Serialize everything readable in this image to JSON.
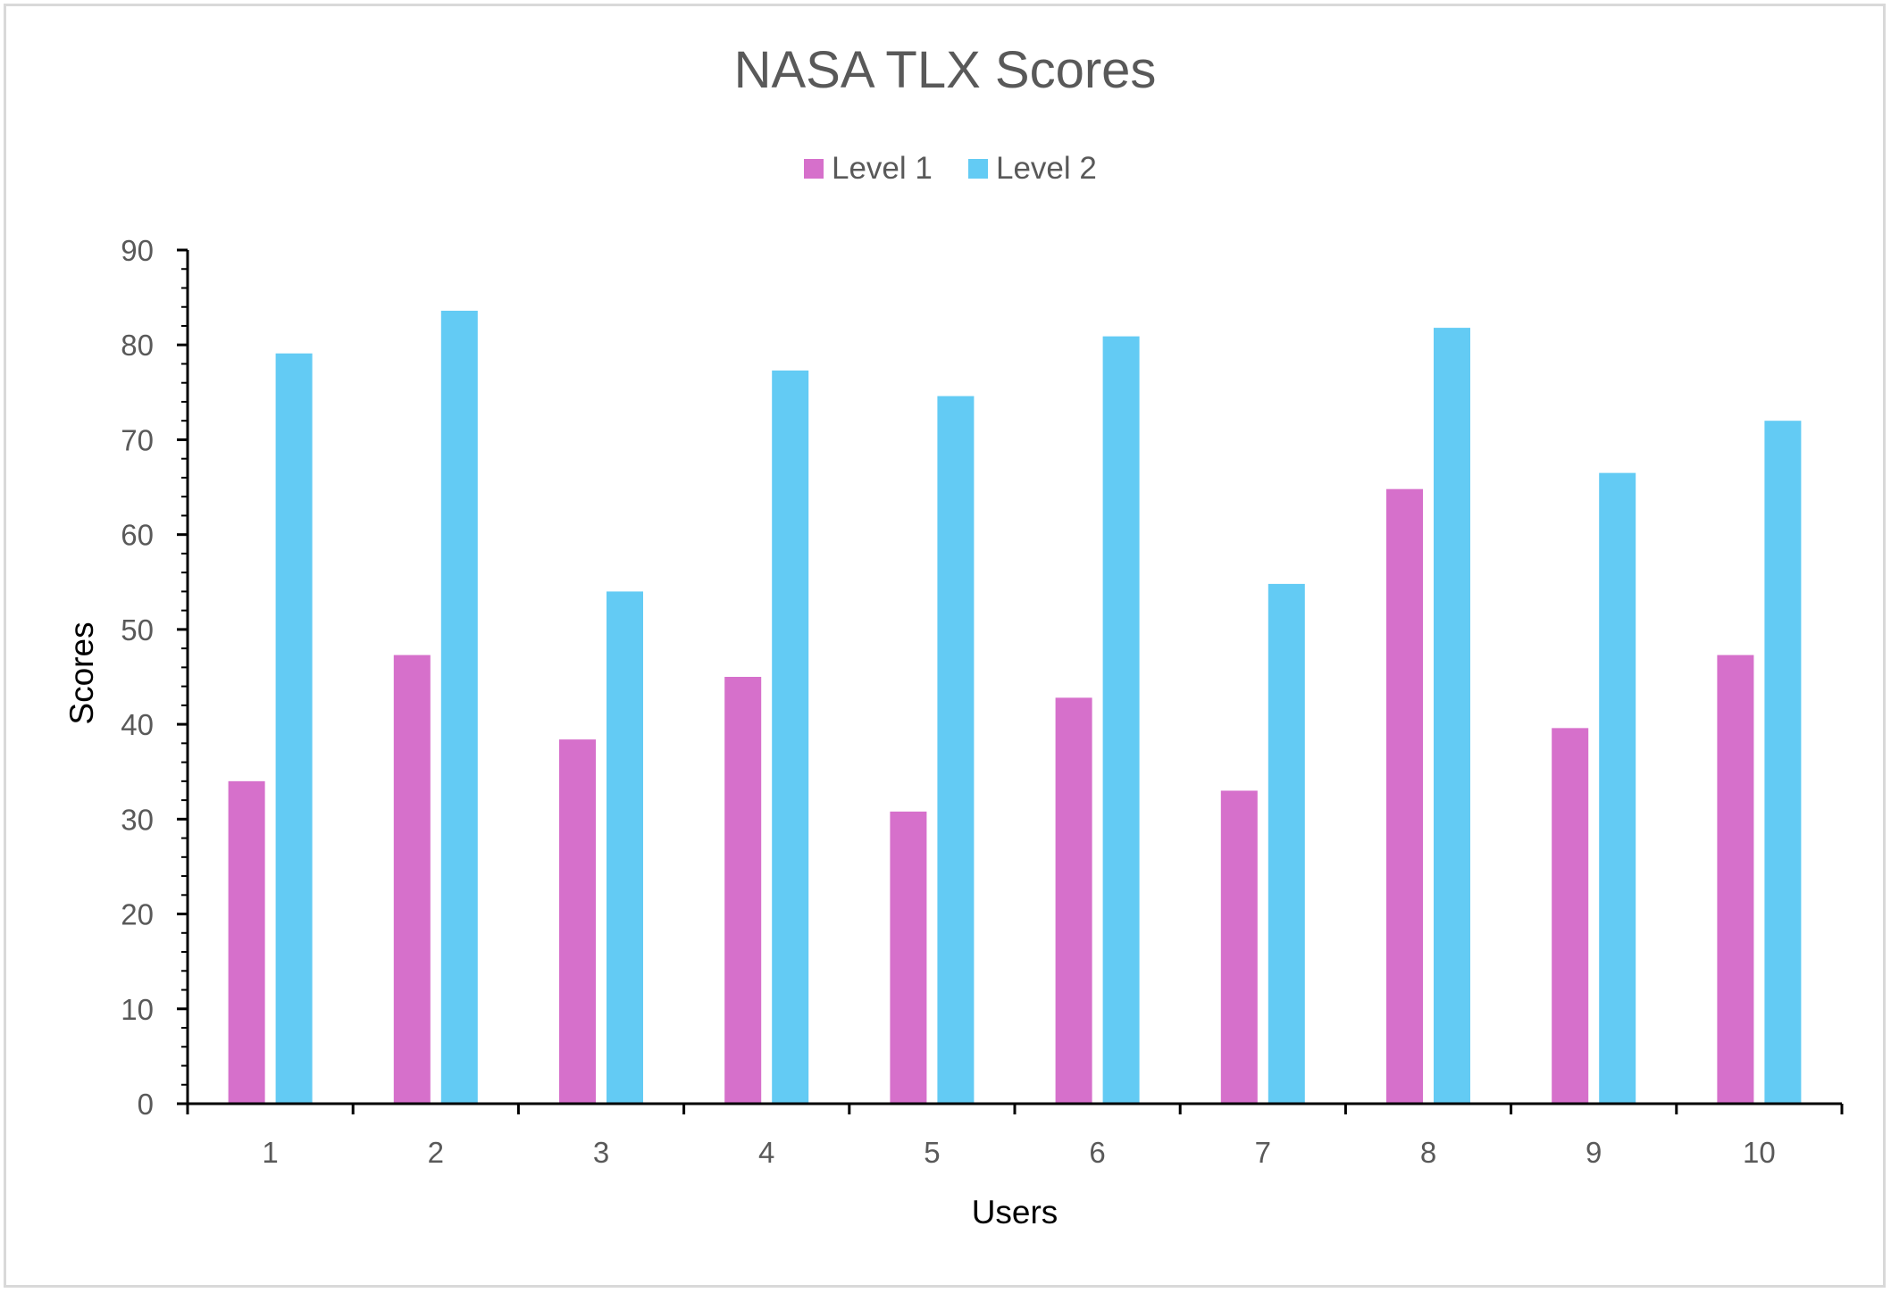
{
  "chart_data": {
    "type": "bar",
    "title": "NASA TLX Scores",
    "xlabel": "Users",
    "ylabel": "Scores",
    "categories": [
      "1",
      "2",
      "3",
      "4",
      "5",
      "6",
      "7",
      "8",
      "9",
      "10"
    ],
    "series": [
      {
        "name": "Level 1",
        "color": "#d670cb",
        "values": [
          34,
          47.3,
          38.4,
          45,
          30.8,
          42.8,
          33,
          64.8,
          39.6,
          47.3
        ]
      },
      {
        "name": "Level 2",
        "color": "#63cbf4",
        "values": [
          79.1,
          83.6,
          54,
          77.3,
          74.6,
          80.9,
          54.8,
          81.8,
          66.5,
          72
        ]
      }
    ],
    "ylim": [
      0,
      90
    ],
    "yticks": [
      0,
      10,
      20,
      30,
      40,
      50,
      60,
      70,
      80,
      90
    ],
    "grid": false,
    "legend_position": "top"
  }
}
